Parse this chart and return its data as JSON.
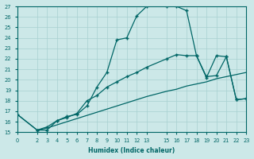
{
  "xlabel": "Humidex (Indice chaleur)",
  "background_color": "#cce8e8",
  "line_color": "#006666",
  "xlim": [
    0,
    23
  ],
  "ylim": [
    15,
    27
  ],
  "xticks": [
    0,
    2,
    3,
    4,
    5,
    6,
    7,
    8,
    9,
    10,
    11,
    12,
    13,
    15,
    16,
    17,
    18,
    19,
    20,
    21,
    22,
    23
  ],
  "yticks": [
    15,
    16,
    17,
    18,
    19,
    20,
    21,
    22,
    23,
    24,
    25,
    26,
    27
  ],
  "line1_x": [
    0,
    2,
    3,
    4,
    5,
    6,
    7,
    8,
    9,
    10,
    11,
    12,
    13,
    15,
    16,
    17,
    18,
    19,
    20,
    21,
    22,
    23
  ],
  "line1_y": [
    16.7,
    15.2,
    15.2,
    16.1,
    16.5,
    16.7,
    17.5,
    19.3,
    20.7,
    23.8,
    24.0,
    26.1,
    27.0,
    27.0,
    27.0,
    26.6,
    22.3,
    20.2,
    22.3,
    22.2,
    18.1,
    18.2
  ],
  "line2_x": [
    2,
    3,
    4,
    5,
    6,
    7,
    8,
    9,
    10,
    11,
    12,
    13,
    15,
    16,
    17,
    18,
    19,
    20,
    21,
    22,
    23
  ],
  "line2_y": [
    15.2,
    15.5,
    16.1,
    16.4,
    16.8,
    18.0,
    18.5,
    19.3,
    19.8,
    20.3,
    20.7,
    21.2,
    22.0,
    22.4,
    22.3,
    22.3,
    20.3,
    20.4,
    22.2,
    18.1,
    18.2
  ],
  "line3_x": [
    0,
    2,
    3,
    4,
    5,
    6,
    7,
    8,
    9,
    10,
    11,
    12,
    13,
    15,
    16,
    17,
    18,
    19,
    20,
    21,
    22,
    23
  ],
  "line3_y": [
    16.7,
    15.2,
    15.4,
    15.7,
    16.0,
    16.3,
    16.6,
    16.9,
    17.2,
    17.5,
    17.8,
    18.1,
    18.4,
    18.9,
    19.1,
    19.4,
    19.6,
    19.8,
    20.1,
    20.3,
    20.5,
    20.7
  ]
}
